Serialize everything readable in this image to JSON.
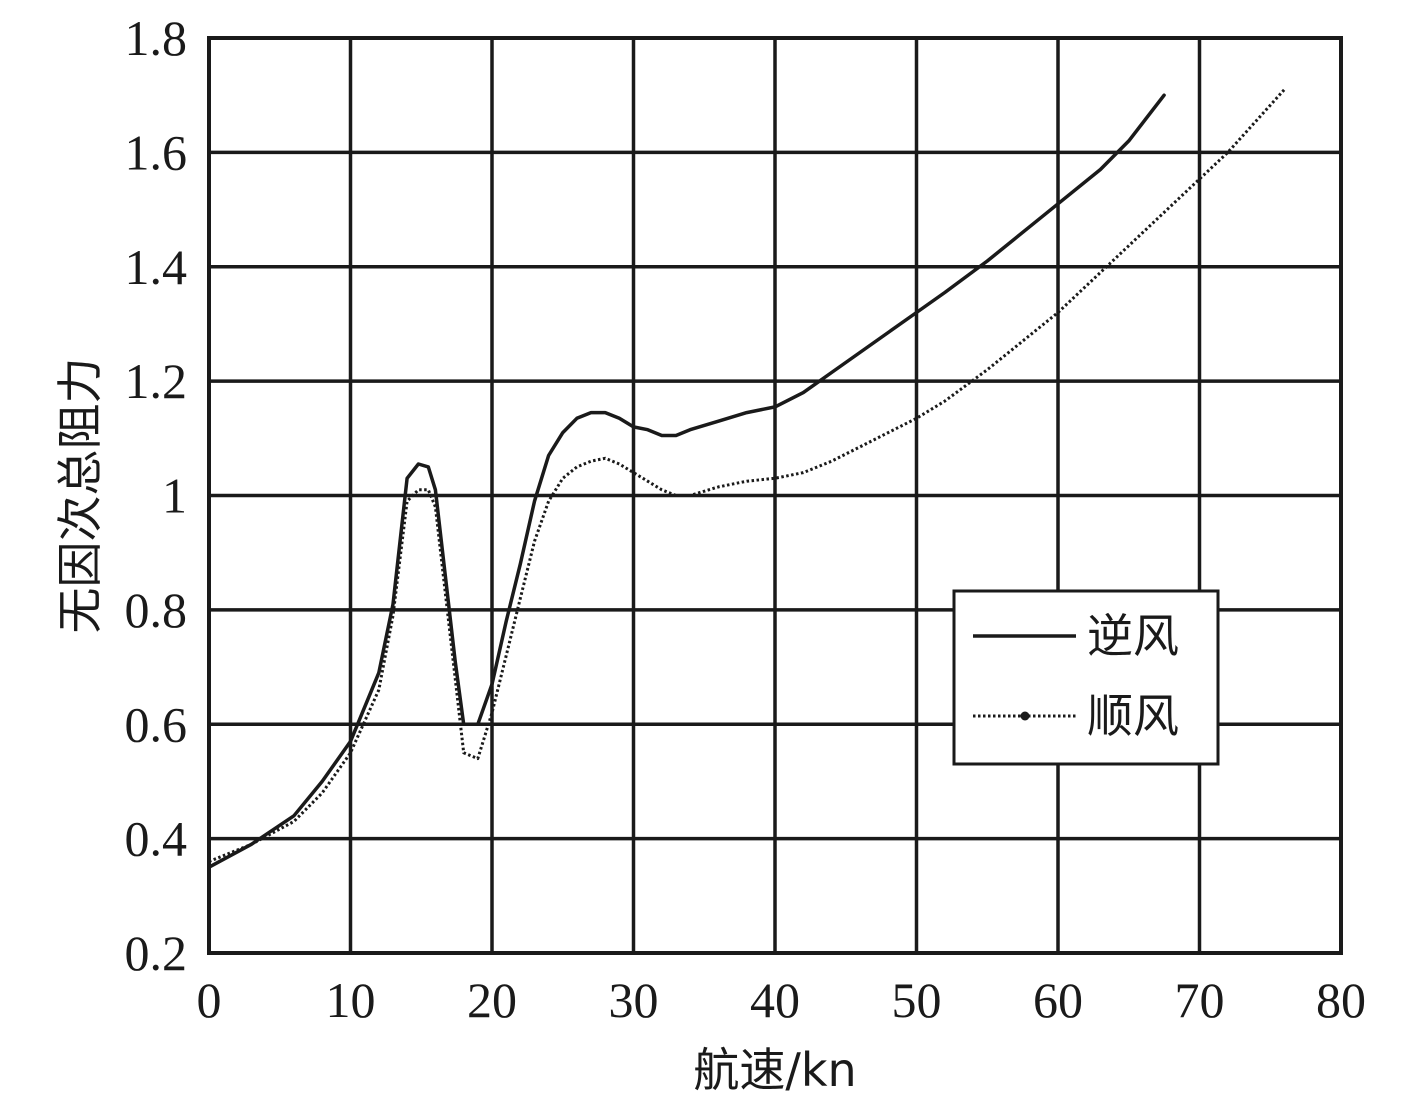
{
  "chart_data": {
    "type": "line",
    "xlabel": "航速/kn",
    "ylabel": "无因次总阻力",
    "xlim": [
      0,
      80
    ],
    "ylim": [
      0.2,
      1.8
    ],
    "xticks": [
      0,
      10,
      20,
      30,
      40,
      50,
      60,
      70,
      80
    ],
    "yticks": [
      0.2,
      0.4,
      0.6,
      0.8,
      1.0,
      1.2,
      1.4,
      1.6,
      1.8
    ],
    "xtick_labels": [
      "0",
      "10",
      "20",
      "30",
      "40",
      "50",
      "60",
      "70",
      "80"
    ],
    "ytick_labels": [
      "0.2",
      "0.4",
      "0.6",
      "0.8",
      "1",
      "1.2",
      "1.4",
      "1.6",
      "1.8"
    ],
    "grid": true,
    "legend": "center-right",
    "series": [
      {
        "name": "逆风",
        "style": "solid",
        "color": "#1a1a1a",
        "x": [
          0,
          3,
          6,
          8,
          10,
          12,
          13,
          14,
          14.8,
          15.5,
          16,
          16.7,
          17.4,
          18,
          19,
          20,
          21,
          22,
          23,
          24,
          25,
          26,
          27,
          28,
          29,
          30,
          31,
          32,
          33,
          34,
          36,
          38,
          40,
          42,
          44,
          46,
          48,
          50,
          52,
          55,
          58,
          60,
          63,
          65,
          67.5
        ],
        "y": [
          0.35,
          0.39,
          0.44,
          0.5,
          0.57,
          0.69,
          0.81,
          1.03,
          1.055,
          1.05,
          1.01,
          0.86,
          0.71,
          0.6,
          0.6,
          0.67,
          0.78,
          0.88,
          0.99,
          1.07,
          1.11,
          1.135,
          1.145,
          1.145,
          1.135,
          1.12,
          1.115,
          1.105,
          1.105,
          1.115,
          1.13,
          1.145,
          1.155,
          1.18,
          1.215,
          1.25,
          1.285,
          1.32,
          1.355,
          1.41,
          1.47,
          1.51,
          1.57,
          1.62,
          1.7
        ]
      },
      {
        "name": "顺风",
        "style": "dotted",
        "color": "#1a1a1a",
        "x": [
          0,
          3,
          6,
          8,
          10,
          12,
          13,
          14,
          14.8,
          15.5,
          16,
          16.7,
          17.4,
          18,
          19,
          20,
          21,
          22,
          23,
          24,
          25,
          26,
          27,
          28,
          29,
          30,
          31,
          32,
          33,
          34,
          36,
          38,
          40,
          42,
          44,
          46,
          48,
          50,
          52,
          55,
          58,
          60,
          63,
          66,
          69,
          72,
          76
        ],
        "y": [
          0.36,
          0.39,
          0.43,
          0.48,
          0.55,
          0.66,
          0.79,
          0.99,
          1.01,
          1.01,
          0.98,
          0.83,
          0.68,
          0.55,
          0.54,
          0.62,
          0.72,
          0.82,
          0.92,
          0.99,
          1.03,
          1.05,
          1.06,
          1.065,
          1.055,
          1.04,
          1.025,
          1.01,
          1.0,
          1.0,
          1.015,
          1.025,
          1.03,
          1.04,
          1.06,
          1.085,
          1.11,
          1.135,
          1.165,
          1.22,
          1.28,
          1.32,
          1.39,
          1.46,
          1.53,
          1.6,
          1.71
        ]
      }
    ]
  }
}
